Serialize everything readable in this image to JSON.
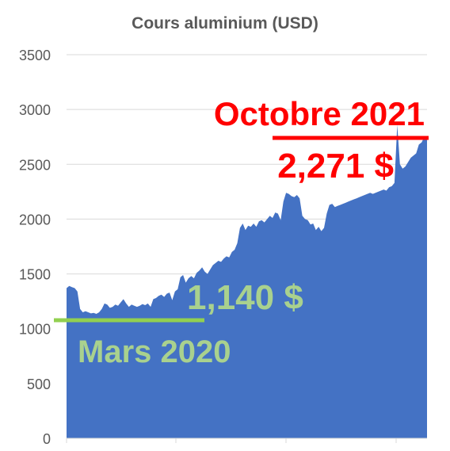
{
  "chart_data": {
    "type": "area",
    "title": "Cours aluminium (USD)",
    "xlabel": "",
    "ylabel": "",
    "ylim": [
      0,
      3500
    ],
    "yticks": [
      0,
      500,
      1000,
      1500,
      2000,
      2500,
      3000,
      3500
    ],
    "grid": true,
    "legend": "none",
    "colors": {
      "area": "#4472c4",
      "grid": "#d9d9d9",
      "axis_text": "#595959",
      "high": "#ff0000",
      "low": "#92d050",
      "low_text": "#a9d18e"
    },
    "series": [
      {
        "values": [
          1370,
          1390,
          1380,
          1370,
          1340,
          1180,
          1150,
          1160,
          1150,
          1140,
          1145,
          1135,
          1150,
          1180,
          1230,
          1220,
          1190,
          1200,
          1220,
          1210,
          1240,
          1270,
          1230,
          1200,
          1220,
          1210,
          1200,
          1210,
          1225,
          1215,
          1230,
          1200,
          1270,
          1280,
          1300,
          1310,
          1290,
          1320,
          1330,
          1260,
          1340,
          1360,
          1470,
          1490,
          1420,
          1460,
          1480,
          1460,
          1510,
          1530,
          1560,
          1520,
          1500,
          1540,
          1580,
          1600,
          1620,
          1610,
          1640,
          1660,
          1650,
          1700,
          1720,
          1780,
          1920,
          1960,
          1900,
          1940,
          1930,
          1960,
          1930,
          1980,
          1990,
          1970,
          2000,
          2030,
          2010,
          2060,
          2050,
          1990,
          2160,
          2240,
          2230,
          2210,
          2200,
          2220,
          2190,
          2030,
          2000,
          1990,
          1950,
          1960,
          1900,
          1930,
          1890,
          1920,
          2050,
          2130,
          2140,
          2110,
          2120,
          2130,
          2140,
          2150,
          2160,
          2170,
          2180,
          2190,
          2200,
          2210,
          2220,
          2230,
          2240,
          2230,
          2240,
          2250,
          2260,
          2270,
          2260,
          2290,
          2300,
          2330,
          2860,
          2500,
          2460,
          2480,
          2520,
          2560,
          2580,
          2600,
          2680,
          2700,
          2750,
          2740
        ]
      }
    ],
    "annotations": {
      "high_label": "Octobre 2021",
      "high_value": "2,271 $",
      "low_value": "1,140 $",
      "low_label": "Mars 2020"
    }
  }
}
